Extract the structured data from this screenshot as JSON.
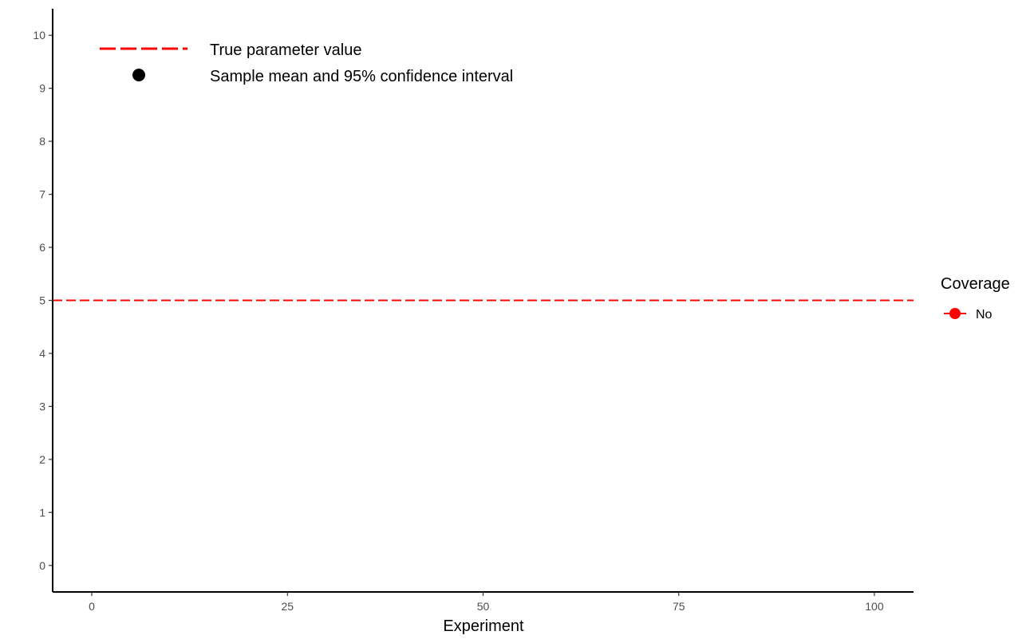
{
  "chart_data": {
    "type": "scatter",
    "xlabel": "Experiment",
    "ylabel": "",
    "xlim": [
      -5,
      105
    ],
    "ylim": [
      -0.5,
      10.5
    ],
    "x_ticks": [
      0,
      25,
      50,
      75,
      100
    ],
    "y_ticks": [
      0,
      1,
      2,
      3,
      4,
      5,
      6,
      7,
      8,
      9,
      10
    ],
    "x_tick_labels": [
      "0",
      "25",
      "50",
      "75",
      "100"
    ],
    "y_tick_labels": [
      "0",
      "1",
      "2",
      "3",
      "4",
      "5",
      "6",
      "7",
      "8",
      "9",
      "10"
    ],
    "reference_line": {
      "y": 5,
      "color": "#ff0000",
      "style": "dashed"
    },
    "series": [],
    "grid": false,
    "annotation_legend": [
      {
        "label": "True parameter value",
        "symbol": "dashed-line",
        "color": "#ff0000"
      },
      {
        "label": "Sample mean and 95% confidence interval",
        "symbol": "point",
        "color": "#000000"
      }
    ],
    "legend": {
      "title": "Coverage",
      "position": "right",
      "items": [
        {
          "label": "No",
          "color": "#ff0000"
        }
      ]
    }
  }
}
